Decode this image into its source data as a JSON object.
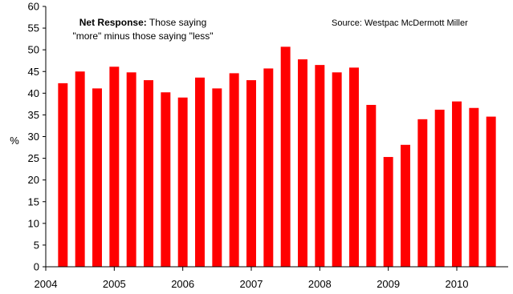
{
  "chart_data": {
    "type": "bar",
    "ylabel": "%",
    "ylim": [
      0,
      60
    ],
    "yticks": [
      0,
      5,
      10,
      15,
      20,
      25,
      30,
      35,
      40,
      45,
      50,
      55,
      60
    ],
    "xticks": [
      "2004",
      "2005",
      "2006",
      "2007",
      "2008",
      "2009",
      "2010"
    ],
    "xrange": [
      2004.0,
      2010.75
    ],
    "bar_color": "#ff0000",
    "annotation": {
      "bold": "Net Response:",
      "line1": "Those saying",
      "line2": "\"more\" minus those saying \"less\""
    },
    "source": "Source:  Westpac McDermott Miller",
    "x": [
      2004.25,
      2004.5,
      2004.75,
      2005.0,
      2005.25,
      2005.5,
      2005.75,
      2006.0,
      2006.25,
      2006.5,
      2006.75,
      2007.0,
      2007.25,
      2007.5,
      2007.75,
      2008.0,
      2008.25,
      2008.5,
      2008.75,
      2009.0,
      2009.25,
      2009.5,
      2009.75,
      2010.0,
      2010.25,
      2010.5
    ],
    "values": [
      42.3,
      45.0,
      41.1,
      46.1,
      44.8,
      43.0,
      40.2,
      39.0,
      43.6,
      41.1,
      44.6,
      43.0,
      45.7,
      50.7,
      47.8,
      46.5,
      44.8,
      45.9,
      37.3,
      25.3,
      28.1,
      34.0,
      36.2,
      38.1,
      36.6,
      34.6
    ]
  }
}
